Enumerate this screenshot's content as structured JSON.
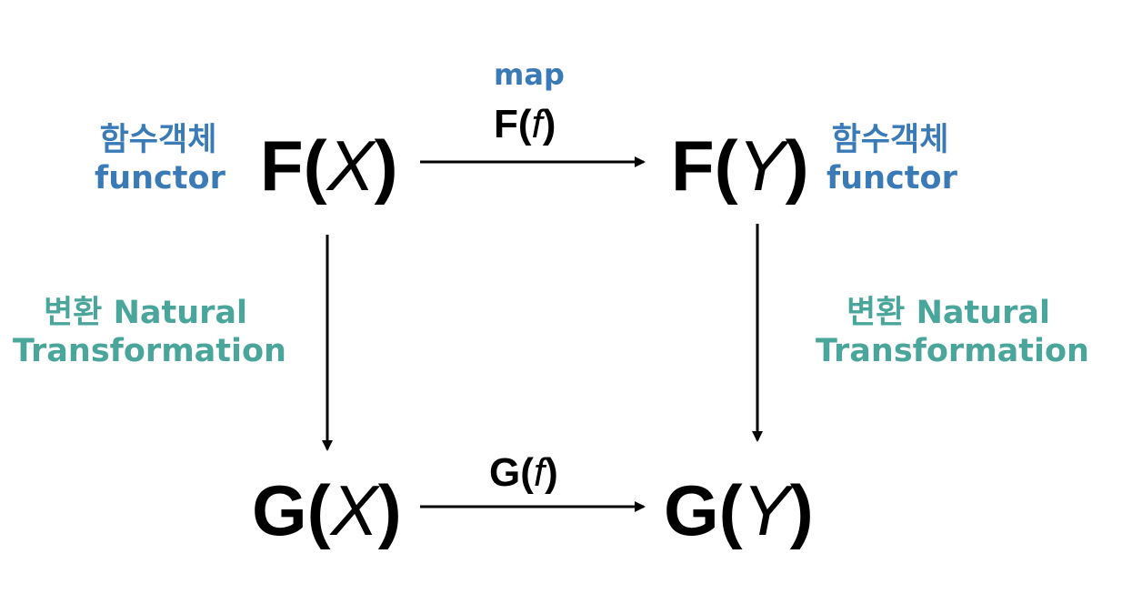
{
  "objects": {
    "fx": {
      "functor": "F",
      "var": "X"
    },
    "fy": {
      "functor": "F",
      "var": "Y"
    },
    "gx": {
      "functor": "G",
      "var": "X"
    },
    "gy": {
      "functor": "G",
      "var": "Y"
    }
  },
  "morphisms": {
    "top": {
      "functor": "F",
      "var": "f",
      "caption": "map"
    },
    "bottom": {
      "functor": "G",
      "var": "f"
    }
  },
  "annotations": {
    "functor_left": {
      "korean": "함수객체",
      "english": "functor"
    },
    "functor_right": {
      "korean": "함수객체",
      "english": "functor"
    },
    "nat_left": {
      "line1": "변환 Natural",
      "line2": "Transformation"
    },
    "nat_right": {
      "line1": "변환 Natural",
      "line2": "Transformation"
    }
  },
  "colors": {
    "functor_label": "#3a7ab7",
    "natural_transformation_label": "#4aa59b",
    "arrows": "#000000"
  }
}
